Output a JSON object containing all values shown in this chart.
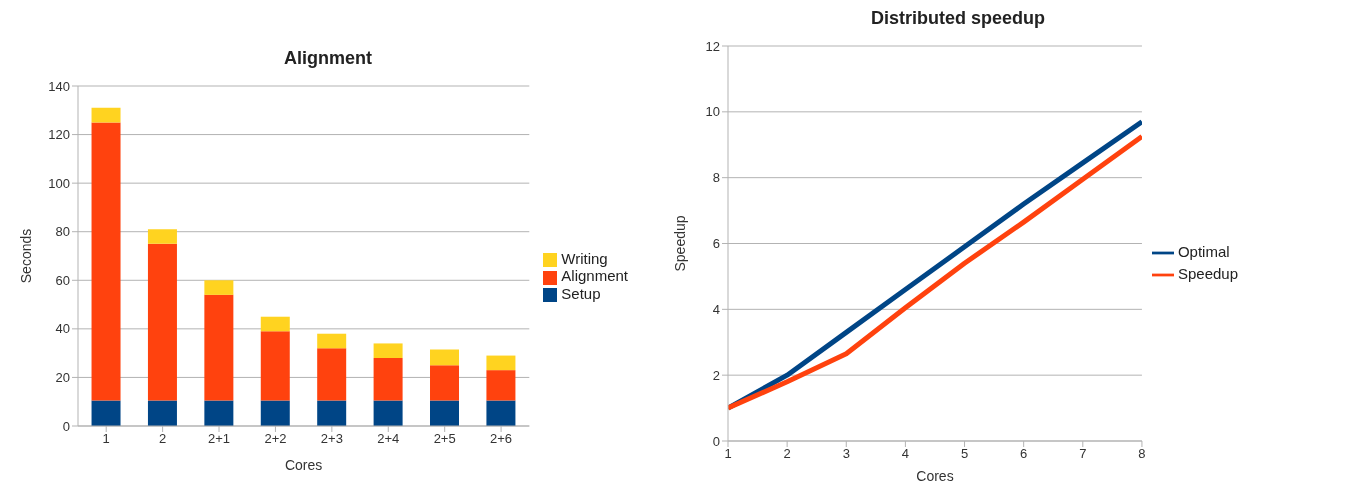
{
  "chart_data": [
    {
      "type": "bar",
      "title": "Alignment",
      "xlabel": "Cores",
      "ylabel": "Seconds",
      "stacked": true,
      "categories": [
        "1",
        "2",
        "2+1",
        "2+2",
        "2+3",
        "2+4",
        "2+5",
        "2+6"
      ],
      "series": [
        {
          "name": "Setup",
          "color": "#004586",
          "values": [
            10.5,
            10.5,
            10.5,
            10.5,
            10.5,
            10.5,
            10.5,
            10.5
          ]
        },
        {
          "name": "Alignment",
          "color": "#ff420e",
          "values": [
            114.5,
            64.5,
            43.5,
            28.5,
            21.5,
            17.5,
            14.5,
            12.5
          ]
        },
        {
          "name": "Writing",
          "color": "#ffd320",
          "values": [
            6,
            6,
            6,
            6,
            6,
            6,
            6.5,
            6
          ]
        }
      ],
      "ylim": [
        0,
        140
      ],
      "yticks": [
        0,
        20,
        40,
        60,
        80,
        100,
        120,
        140
      ],
      "grid": "y",
      "legend": "right"
    },
    {
      "type": "line",
      "title": "Distributed speedup",
      "xlabel": "Cores",
      "ylabel": "Speedup",
      "x": [
        1,
        2,
        3,
        4,
        5,
        6,
        7,
        8
      ],
      "series": [
        {
          "name": "Optimal",
          "color": "#004586",
          "values": [
            1,
            2,
            3.3,
            4.6,
            5.9,
            7.2,
            8.45,
            9.7
          ]
        },
        {
          "name": "Speedup",
          "color": "#ff420e",
          "values": [
            1,
            1.8,
            2.65,
            4.05,
            5.4,
            6.65,
            7.95,
            9.25
          ]
        }
      ],
      "xlim": [
        1,
        8
      ],
      "xticks": [
        1,
        2,
        3,
        4,
        5,
        6,
        7,
        8
      ],
      "ylim": [
        0,
        12
      ],
      "yticks": [
        0,
        2,
        4,
        6,
        8,
        10,
        12
      ],
      "grid": "y",
      "legend": "right",
      "marker": "none",
      "line_style": "solid"
    }
  ]
}
